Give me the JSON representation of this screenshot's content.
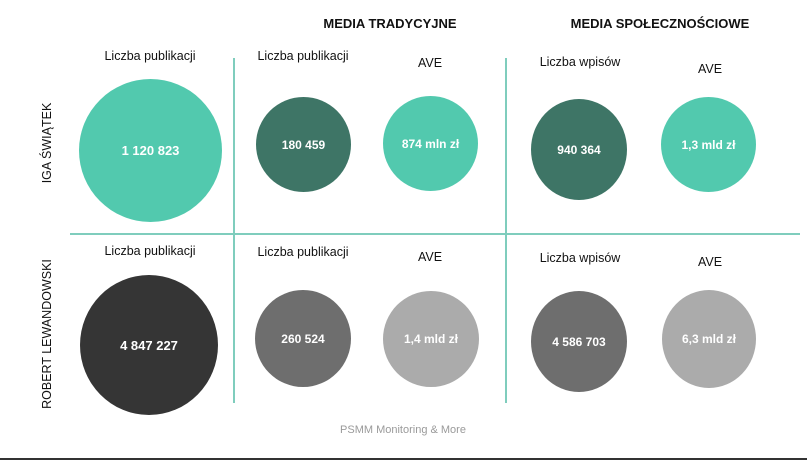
{
  "headers": {
    "traditional": "MEDIA TRADYCYJNE",
    "social": "MEDIA SPOŁECZNOŚCIOWE"
  },
  "colors": {
    "teal_light": "#52c9ae",
    "teal_dark": "#3e7566",
    "gray_black": "#353535",
    "gray_dark": "#6e6e6e",
    "gray_light": "#ababab",
    "divider": "#7fcdbd"
  },
  "rows": [
    {
      "name": "IGA ŚWIĄTEK",
      "total": {
        "label": "Liczba publikacji",
        "value_text": "1 120 823"
      },
      "traditional": {
        "count": {
          "label": "Liczba publikacji",
          "value_text": "180 459"
        },
        "ave": {
          "label": "AVE",
          "value_text": "874 mln zł"
        }
      },
      "social": {
        "count": {
          "label": "Liczba wpisów",
          "value_text": "940 364"
        },
        "ave": {
          "label": "AVE",
          "value_text": "1,3 mld zł"
        }
      }
    },
    {
      "name": "ROBERT LEWANDOWSKI",
      "total": {
        "label": "Liczba publikacji",
        "value_text": "4 847 227"
      },
      "traditional": {
        "count": {
          "label": "Liczba publikacji",
          "value_text": "260 524"
        },
        "ave": {
          "label": "AVE",
          "value_text": "1,4 mld zł"
        }
      },
      "social": {
        "count": {
          "label": "Liczba wpisów",
          "value_text": "4 586 703"
        },
        "ave": {
          "label": "AVE",
          "value_text": "6,3 mld zł"
        }
      }
    }
  ],
  "footer": "PSMM Monitoring & More",
  "chart_data": {
    "type": "bubble",
    "rows": [
      "IGA ŚWIĄTEK",
      "ROBERT LEWANDOWSKI"
    ],
    "series": [
      {
        "name": "Liczba publikacji",
        "values": [
          1120823,
          4847227
        ]
      },
      {
        "name": "MEDIA TRADYCYJNE – Liczba publikacji",
        "values": [
          180459,
          260524
        ]
      },
      {
        "name": "MEDIA TRADYCYJNE – AVE",
        "values_text": [
          "874 mln zł",
          "1,4 mld zł"
        ]
      },
      {
        "name": "MEDIA SPOŁECZNOŚCIOWE – Liczba wpisów",
        "values": [
          940364,
          4586703
        ]
      },
      {
        "name": "MEDIA SPOŁECZNOŚCIOWE – AVE",
        "values_text": [
          "1,3 mld zł",
          "6,3 mld zł"
        ]
      }
    ]
  }
}
